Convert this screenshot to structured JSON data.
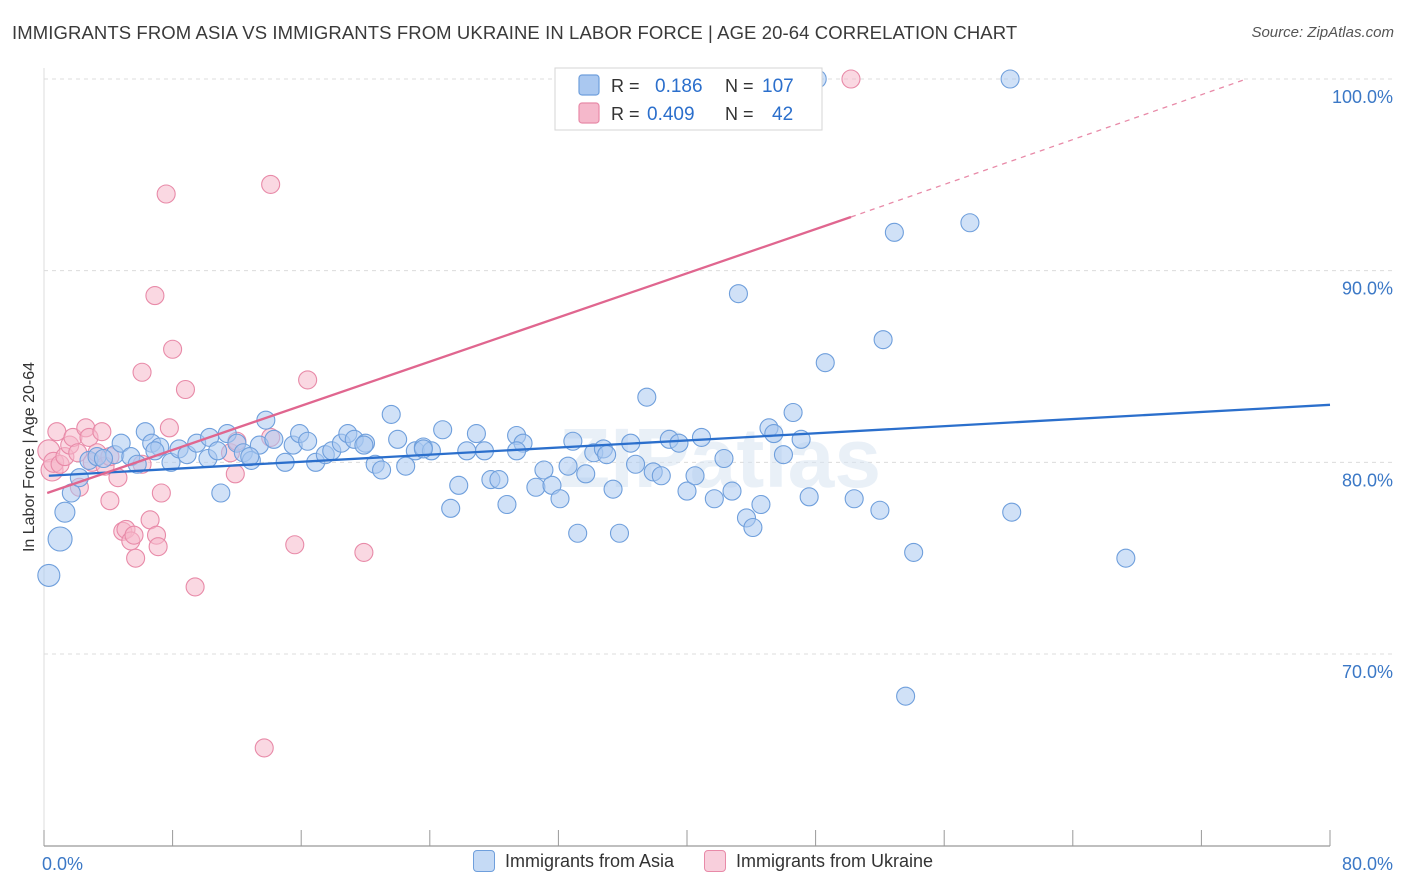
{
  "title": "IMMIGRANTS FROM ASIA VS IMMIGRANTS FROM UKRAINE IN LABOR FORCE | AGE 20-64 CORRELATION CHART",
  "source": "Source: ZipAtlas.com",
  "watermark": "ZIPatlas",
  "colors": {
    "asia_fill": "#aac8f0",
    "asia_stroke": "#6f9fdc",
    "asia_line": "#2b6fcc",
    "ukraine_fill": "#f5b8cb",
    "ukraine_stroke": "#e88aa8",
    "ukraine_line": "#e0668f",
    "axis_label": "#3b78c6",
    "grid": "#dcdcdc"
  },
  "legend_box": {
    "rows": [
      {
        "r_label": "R =",
        "r_value": "0.186",
        "n_label": "N =",
        "n_value": "107"
      },
      {
        "r_label": "R =",
        "r_value": "0.409",
        "n_label": "N =",
        "n_value": "42"
      }
    ]
  },
  "chart_data": {
    "type": "scatter",
    "title": "IMMIGRANTS FROM ASIA VS IMMIGRANTS FROM UKRAINE IN LABOR FORCE | AGE 20-64 CORRELATION CHART",
    "xlabel": "",
    "ylabel": "In Labor Force | Age 20-64",
    "xlim": [
      0,
      80
    ],
    "ylim": [
      60.5,
      101.5
    ],
    "x_tick_labels": [
      "0.0%",
      "80.0%"
    ],
    "y_ticks": [
      70,
      80,
      90,
      100
    ],
    "y_tick_labels": [
      "70.0%",
      "80.0%",
      "90.0%",
      "100.0%"
    ],
    "grid": true,
    "legend_position": "bottom",
    "series": [
      {
        "name": "Immigrants from Asia",
        "r": 0.186,
        "n": 107,
        "trend": {
          "x": [
            0.3,
            80
          ],
          "y": [
            79.3,
            83.0
          ]
        },
        "points": [
          [
            0.3,
            74.1,
            11
          ],
          [
            1.0,
            76.0,
            12
          ],
          [
            1.3,
            77.4,
            10
          ],
          [
            1.7,
            78.4,
            9
          ],
          [
            2.2,
            79.2,
            9
          ],
          [
            2.8,
            80.1,
            9
          ],
          [
            3.3,
            80.3,
            9
          ],
          [
            4.4,
            80.4,
            9
          ],
          [
            4.8,
            81.0,
            9
          ],
          [
            5.4,
            80.3,
            9
          ],
          [
            5.8,
            79.9,
            9
          ],
          [
            6.3,
            81.6,
            9
          ],
          [
            6.7,
            81.0,
            9
          ],
          [
            7.2,
            80.8,
            9
          ],
          [
            7.9,
            80.0,
            9
          ],
          [
            8.4,
            80.7,
            9
          ],
          [
            8.9,
            80.4,
            9
          ],
          [
            9.5,
            81.0,
            9
          ],
          [
            10.2,
            80.2,
            9
          ],
          [
            10.3,
            81.3,
            9
          ],
          [
            11.0,
            78.4,
            9
          ],
          [
            11.4,
            81.5,
            9
          ],
          [
            12.0,
            81.0,
            9
          ],
          [
            12.4,
            80.5,
            9
          ],
          [
            12.9,
            80.1,
            9
          ],
          [
            13.4,
            80.9,
            9
          ],
          [
            13.8,
            82.2,
            9
          ],
          [
            14.3,
            81.2,
            9
          ],
          [
            15.0,
            80.0,
            9
          ],
          [
            15.5,
            80.9,
            9
          ],
          [
            15.9,
            81.5,
            9
          ],
          [
            16.4,
            81.1,
            9
          ],
          [
            16.9,
            80.0,
            9
          ],
          [
            17.5,
            80.4,
            9
          ],
          [
            17.9,
            80.6,
            9
          ],
          [
            18.5,
            81.0,
            9
          ],
          [
            18.9,
            81.5,
            9
          ],
          [
            19.3,
            81.2,
            9
          ],
          [
            20.0,
            81.0,
            9
          ],
          [
            20.6,
            79.9,
            9
          ],
          [
            21.0,
            79.6,
            9
          ],
          [
            21.6,
            82.5,
            9
          ],
          [
            22.0,
            81.2,
            9
          ],
          [
            22.5,
            79.8,
            9
          ],
          [
            23.1,
            80.6,
            9
          ],
          [
            23.6,
            80.8,
            9
          ],
          [
            24.1,
            80.6,
            9
          ],
          [
            24.8,
            81.7,
            9
          ],
          [
            25.3,
            77.6,
            9
          ],
          [
            25.8,
            78.8,
            9
          ],
          [
            26.3,
            80.6,
            9
          ],
          [
            26.9,
            81.5,
            9
          ],
          [
            27.4,
            80.6,
            9
          ],
          [
            27.8,
            79.1,
            9
          ],
          [
            28.3,
            79.1,
            9
          ],
          [
            28.8,
            77.8,
            9
          ],
          [
            29.4,
            81.4,
            9
          ],
          [
            29.8,
            81.0,
            9
          ],
          [
            30.6,
            78.7,
            9
          ],
          [
            31.1,
            79.6,
            9
          ],
          [
            31.6,
            78.8,
            9
          ],
          [
            32.1,
            78.1,
            9
          ],
          [
            32.6,
            79.8,
            9
          ],
          [
            32.9,
            81.1,
            9
          ],
          [
            33.2,
            76.3,
            9
          ],
          [
            33.7,
            79.4,
            9
          ],
          [
            34.2,
            80.5,
            9
          ],
          [
            34.8,
            80.7,
            9
          ],
          [
            35.4,
            78.6,
            9
          ],
          [
            35.8,
            76.3,
            9
          ],
          [
            36.5,
            81.0,
            9
          ],
          [
            36.8,
            79.9,
            9
          ],
          [
            37.5,
            83.4,
            9
          ],
          [
            37.9,
            79.5,
            9
          ],
          [
            38.4,
            79.3,
            9
          ],
          [
            38.9,
            81.2,
            9
          ],
          [
            39.5,
            81.0,
            9
          ],
          [
            40.0,
            78.5,
            9
          ],
          [
            40.5,
            79.3,
            9
          ],
          [
            40.9,
            81.3,
            9
          ],
          [
            41.7,
            78.1,
            9
          ],
          [
            42.3,
            80.2,
            9
          ],
          [
            42.8,
            78.5,
            9
          ],
          [
            43.2,
            88.8,
            9
          ],
          [
            43.7,
            77.1,
            9
          ],
          [
            44.1,
            76.6,
            9
          ],
          [
            44.6,
            77.8,
            9
          ],
          [
            45.1,
            81.8,
            9
          ],
          [
            45.4,
            81.5,
            9
          ],
          [
            46.0,
            80.4,
            9
          ],
          [
            46.6,
            82.6,
            9
          ],
          [
            47.1,
            81.2,
            9
          ],
          [
            47.6,
            78.2,
            9
          ],
          [
            48.1,
            100.0,
            9
          ],
          [
            48.6,
            85.2,
            9
          ],
          [
            50.4,
            78.1,
            9
          ],
          [
            52.0,
            77.5,
            9
          ],
          [
            52.2,
            86.4,
            9
          ],
          [
            52.9,
            92.0,
            9
          ],
          [
            53.6,
            67.8,
            9
          ],
          [
            54.1,
            75.3,
            9
          ],
          [
            57.6,
            92.5,
            9
          ],
          [
            60.1,
            100.0,
            9
          ],
          [
            60.2,
            77.4,
            9
          ],
          [
            67.3,
            75.0,
            9
          ],
          [
            35.0,
            80.4,
            9
          ],
          [
            23.6,
            80.7,
            9
          ],
          [
            19.9,
            80.9,
            9
          ],
          [
            10.8,
            80.6,
            9
          ],
          [
            6.9,
            80.6,
            9
          ],
          [
            3.7,
            80.2,
            9
          ],
          [
            12.8,
            80.3,
            9
          ],
          [
            29.4,
            80.6,
            9
          ]
        ]
      },
      {
        "name": "Immigrants from Ukraine",
        "r": 0.409,
        "n": 42,
        "trend": {
          "x": [
            0.2,
            50.2
          ],
          "y": [
            78.4,
            92.8
          ]
        },
        "trend_dashed": {
          "x": [
            50.2,
            74.8
          ],
          "y": [
            92.8,
            100.0
          ]
        },
        "points": [
          [
            0.3,
            80.6,
            11
          ],
          [
            0.5,
            79.6,
            11
          ],
          [
            0.6,
            80.0,
            10
          ],
          [
            1.0,
            79.9,
            9
          ],
          [
            0.8,
            81.6,
            9
          ],
          [
            1.3,
            80.3,
            9
          ],
          [
            1.6,
            80.9,
            9
          ],
          [
            1.8,
            81.3,
            9
          ],
          [
            2.1,
            80.5,
            9
          ],
          [
            2.2,
            78.7,
            9
          ],
          [
            2.6,
            81.8,
            9
          ],
          [
            2.8,
            81.3,
            9
          ],
          [
            3.0,
            80.0,
            9
          ],
          [
            3.3,
            80.5,
            9
          ],
          [
            3.6,
            81.6,
            9
          ],
          [
            3.8,
            79.8,
            9
          ],
          [
            4.1,
            78.0,
            9
          ],
          [
            4.6,
            79.2,
            9
          ],
          [
            4.1,
            80.3,
            9
          ],
          [
            4.9,
            76.4,
            9
          ],
          [
            5.1,
            76.5,
            9
          ],
          [
            5.4,
            75.9,
            9
          ],
          [
            5.6,
            76.2,
            9
          ],
          [
            5.7,
            75.0,
            9
          ],
          [
            6.1,
            79.9,
            9
          ],
          [
            6.1,
            84.7,
            9
          ],
          [
            6.6,
            77.0,
            9
          ],
          [
            6.9,
            88.7,
            9
          ],
          [
            7.0,
            76.2,
            9
          ],
          [
            7.1,
            75.6,
            9
          ],
          [
            7.3,
            78.4,
            9
          ],
          [
            7.6,
            94.0,
            9
          ],
          [
            7.8,
            81.8,
            9
          ],
          [
            8.0,
            85.9,
            9
          ],
          [
            8.8,
            83.8,
            9
          ],
          [
            9.4,
            73.5,
            9
          ],
          [
            11.6,
            80.5,
            9
          ],
          [
            11.9,
            79.4,
            9
          ],
          [
            12.0,
            81.1,
            9
          ],
          [
            13.7,
            65.1,
            9
          ],
          [
            14.1,
            81.3,
            9
          ],
          [
            14.1,
            94.5,
            9
          ],
          [
            15.6,
            75.7,
            9
          ],
          [
            16.4,
            84.3,
            9
          ],
          [
            19.9,
            75.3,
            9
          ],
          [
            50.2,
            100.0,
            9
          ]
        ]
      }
    ]
  }
}
